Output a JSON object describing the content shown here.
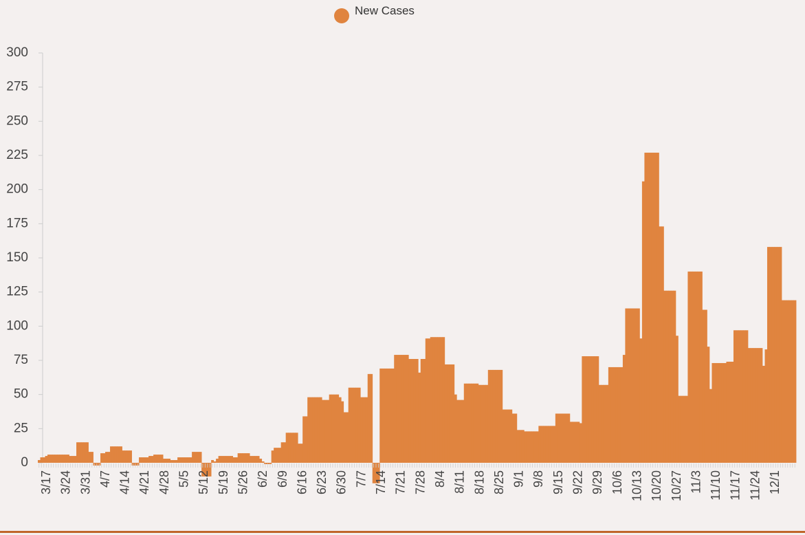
{
  "chart_data": {
    "type": "bar",
    "legend": {
      "entries": [
        {
          "name": "New Cases",
          "color": "#e0843f"
        }
      ],
      "placement": "top-center"
    },
    "series": [
      {
        "name": "New Cases",
        "color": "#e0843f",
        "values": [
          2,
          4,
          4,
          5,
          6,
          6,
          6,
          6,
          6,
          6,
          6,
          6,
          6,
          5,
          5,
          5,
          15,
          15,
          15,
          15,
          15,
          8,
          8,
          -2,
          -2,
          -2,
          7,
          7,
          8,
          8,
          12,
          12,
          12,
          12,
          12,
          9,
          9,
          9,
          9,
          -2,
          -2,
          -2,
          4,
          4,
          4,
          4,
          5,
          5,
          6,
          6,
          6,
          6,
          3,
          3,
          3,
          2,
          2,
          2,
          4,
          4,
          4,
          4,
          4,
          4,
          8,
          8,
          8,
          8,
          -10,
          -10,
          -10,
          -10,
          2,
          1,
          3,
          5,
          5,
          5,
          5,
          5,
          5,
          4,
          4,
          7,
          7,
          7,
          7,
          7,
          5,
          5,
          5,
          5,
          3,
          1,
          -1,
          -1,
          -1,
          9,
          11,
          11,
          11,
          15,
          15,
          22,
          22,
          22,
          22,
          22,
          14,
          14,
          34,
          34,
          48,
          48,
          48,
          48,
          48,
          48,
          46,
          46,
          46,
          50,
          50,
          50,
          50,
          48,
          45,
          37,
          37,
          55,
          55,
          55,
          55,
          55,
          48,
          48,
          48,
          65,
          65,
          -15,
          -15,
          -15,
          69,
          69,
          69,
          69,
          69,
          69,
          79,
          79,
          79,
          79,
          79,
          79,
          76,
          76,
          76,
          76,
          66,
          76,
          76,
          91,
          91,
          92,
          92,
          92,
          92,
          92,
          92,
          72,
          72,
          72,
          72,
          50,
          46,
          46,
          46,
          58,
          58,
          58,
          58,
          58,
          58,
          57,
          57,
          57,
          57,
          68,
          68,
          68,
          68,
          68,
          68,
          39,
          39,
          39,
          39,
          36,
          36,
          24,
          24,
          24,
          23,
          23,
          23,
          23,
          23,
          23,
          27,
          27,
          27,
          27,
          27,
          27,
          27,
          36,
          36,
          36,
          36,
          36,
          36,
          30,
          30,
          30,
          30,
          29,
          78,
          78,
          78,
          78,
          78,
          78,
          78,
          57,
          57,
          57,
          57,
          70,
          70,
          70,
          70,
          70,
          70,
          79,
          113,
          113,
          113,
          113,
          113,
          113,
          91,
          206,
          227,
          227,
          227,
          227,
          227,
          227,
          173,
          173,
          126,
          126,
          126,
          126,
          126,
          93,
          49,
          49,
          49,
          49,
          140,
          140,
          140,
          140,
          140,
          140,
          112,
          112,
          85,
          54,
          73,
          73,
          73,
          73,
          73,
          73,
          74,
          74,
          74,
          97,
          97,
          97,
          97,
          97,
          97,
          84,
          84,
          84,
          84,
          84,
          84,
          71,
          83,
          158,
          158,
          158,
          158,
          158,
          158,
          119,
          119,
          119,
          119,
          119,
          119
        ]
      }
    ],
    "x_tick_labels": [
      "3/17",
      "3/24",
      "3/31",
      "4/7",
      "4/14",
      "4/21",
      "4/28",
      "5/5",
      "5/12",
      "5/19",
      "5/26",
      "6/2",
      "6/9",
      "6/16",
      "6/23",
      "6/30",
      "7/7",
      "7/14",
      "7/21",
      "7/28",
      "8/4",
      "8/11",
      "8/18",
      "8/25",
      "9/1",
      "9/8",
      "9/15",
      "9/22",
      "9/29",
      "10/6",
      "10/13",
      "10/20",
      "10/27",
      "11/3",
      "11/10",
      "11/17",
      "11/24",
      "12/1"
    ],
    "y_ticks": [
      0,
      25,
      50,
      75,
      100,
      125,
      150,
      175,
      200,
      225,
      250,
      275,
      300
    ],
    "ylim": [
      -15,
      300
    ],
    "grid": false
  }
}
